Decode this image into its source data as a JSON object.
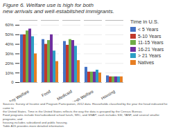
{
  "chart_data": {
    "type": "bar",
    "title": "Figure 6. Welfare use is high for both\nnew arrivals and well-established immigrants.",
    "legend_title": "Time in U.S.",
    "categories": [
      "Any Welfare",
      "Food",
      "Medicaid",
      "Cash Welfare",
      "Housing"
    ],
    "series": [
      {
        "name": "< 5 Years",
        "color": "#4472c4",
        "values": [
          50,
          45,
          43,
          16,
          7
        ]
      },
      {
        "name": "5-10 Years",
        "color": "#c0392b",
        "values": [
          50,
          40,
          39,
          11,
          6
        ]
      },
      {
        "name": "11-15 Years",
        "color": "#70ad47",
        "values": [
          54,
          44,
          45,
          11,
          6
        ]
      },
      {
        "name": "16-21 Years",
        "color": "#7030a0",
        "values": [
          56,
          50,
          44,
          11,
          6
        ]
      },
      {
        "name": "> 21 Years",
        "color": "#2e9ec4",
        "values": [
          48,
          33,
          38,
          13,
          6
        ]
      },
      {
        "name": "Natives",
        "color": "#e67e22",
        "values": [
          30,
          22,
          23,
          10,
          6
        ]
      }
    ],
    "ylim": [
      0,
      65
    ],
    "yticks": [
      0,
      {
        "value": 10,
        "label": "10%"
      },
      {
        "value": 20,
        "label": "20%"
      },
      {
        "value": 30,
        "label": "30%"
      },
      {
        "value": 40,
        "label": "40%"
      },
      {
        "value": 50,
        "label": "50%"
      },
      {
        "value": 60,
        "label": "60%"
      }
    ],
    "grid": true,
    "legend": "right",
    "footnote": "Sources: Survey of Income and Program Participation, 2012 data. Households classified by the year the head indicated he came to\nthe United States. Time in the United States reflects the way the data is grouped by the Census Bureau.\nFood programs include free/subsidized school lunch, WIC, and SNAP; cash includes SSI, TANF, and several smaller programs; and\nhousing includes subsidized and public housing.\nTable A15 provides more detailed information."
  }
}
